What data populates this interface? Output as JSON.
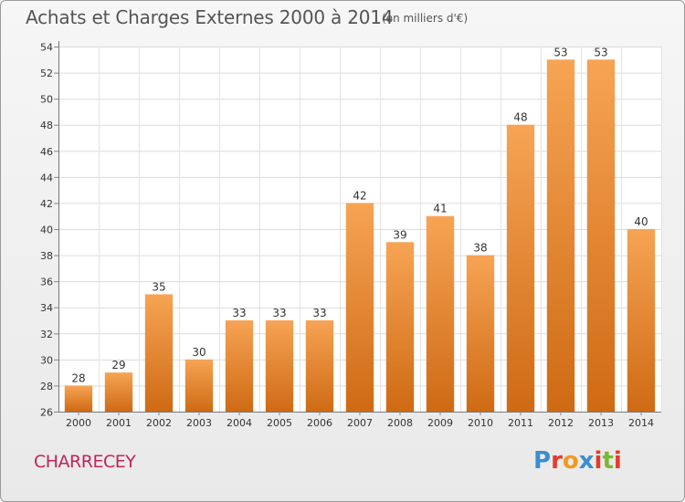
{
  "header": {
    "title": "Achats et Charges Externes 2000 à 2014",
    "subtitle": "(en milliers d'€)"
  },
  "footer": {
    "commune": "CHARRECEY",
    "logo_text": "Proxiti",
    "logo_colors": [
      "#3a8fd0",
      "#e53b2c",
      "#f19a1e",
      "#3a8fd0",
      "#e53b2c",
      "#7ab833",
      "#e53b2c"
    ]
  },
  "chart_data": {
    "type": "bar",
    "title": "Achats et Charges Externes 2000 à 2014",
    "subtitle": "(en milliers d'€)",
    "categories": [
      "2000",
      "2001",
      "2002",
      "2003",
      "2004",
      "2005",
      "2006",
      "2007",
      "2008",
      "2009",
      "2010",
      "2011",
      "2012",
      "2013",
      "2014"
    ],
    "values": [
      28,
      29,
      35,
      30,
      33,
      33,
      33,
      42,
      39,
      41,
      38,
      48,
      53,
      53,
      40
    ],
    "ylim": [
      26,
      54
    ],
    "yticks": [
      26,
      28,
      30,
      32,
      34,
      36,
      38,
      40,
      42,
      44,
      46,
      48,
      50,
      52,
      54
    ],
    "grid": true,
    "bar_color_top": "#f6a454",
    "bar_color_bottom": "#cf6a14"
  }
}
